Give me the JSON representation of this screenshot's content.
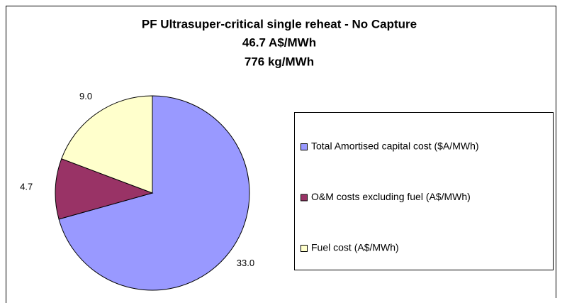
{
  "chart_data": {
    "type": "pie",
    "title": "PF Ultrasuper-critical single reheat - No Capture",
    "subtitle": [
      "46.7 A$/MWh",
      "776 kg/MWh"
    ],
    "categories": [
      "Total Amortised capital cost ($A/MWh)",
      "O&M costs excluding fuel (A$/MWh)",
      "Fuel cost (A$/MWh)"
    ],
    "values": [
      33.0,
      4.7,
      9.0
    ],
    "value_labels": [
      "33.0",
      "4.7",
      "9.0"
    ],
    "colors": [
      "#9999ff",
      "#993366",
      "#ffffcc"
    ],
    "legend": "right"
  }
}
